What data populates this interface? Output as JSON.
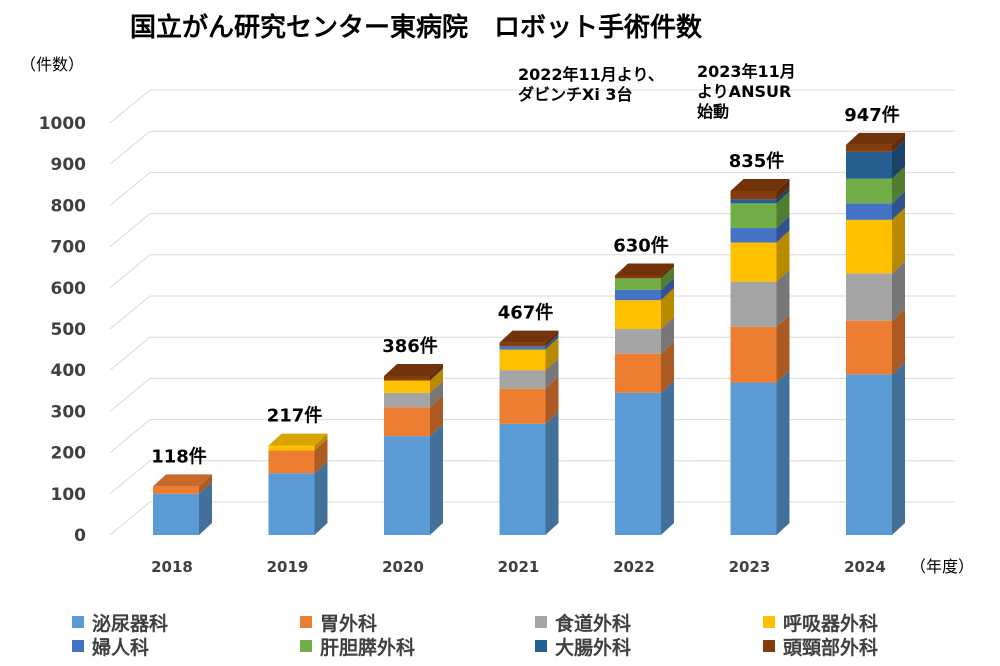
{
  "chart_data": {
    "type": "bar",
    "stacked": true,
    "three_d": true,
    "title": "国立がん研究センター東病院　ロボット手術件数",
    "ylabel": "（件数）",
    "xlabel": "（年度）",
    "ylim": [
      0,
      1000
    ],
    "yticks": [
      0,
      100,
      200,
      300,
      400,
      500,
      600,
      700,
      800,
      900,
      1000
    ],
    "grid": true,
    "legend_position": "bottom",
    "categories": [
      "2018",
      "2019",
      "2020",
      "2021",
      "2022",
      "2023",
      "2024"
    ],
    "totals": [
      118,
      217,
      386,
      467,
      630,
      835,
      947
    ],
    "total_labels": [
      "118件",
      "217件",
      "386件",
      "467件",
      "630件",
      "835件",
      "947件"
    ],
    "series": [
      {
        "name": "泌尿器科",
        "color": "#5B9BD5",
        "values": [
          100,
          150,
          240,
          270,
          345,
          370,
          390
        ]
      },
      {
        "name": "胃外科",
        "color": "#ED7D31",
        "values": [
          18,
          55,
          70,
          85,
          95,
          135,
          130
        ]
      },
      {
        "name": "食道外科",
        "color": "#A5A5A5",
        "values": [
          0,
          0,
          35,
          45,
          60,
          110,
          115
        ]
      },
      {
        "name": "呼吸器外科",
        "color": "#FFC000",
        "values": [
          0,
          12,
          30,
          50,
          70,
          95,
          130
        ]
      },
      {
        "name": "婦人科",
        "color": "#4472C4",
        "values": [
          0,
          0,
          0,
          8,
          25,
          35,
          40
        ]
      },
      {
        "name": "肝胆膵外科",
        "color": "#70AD47",
        "values": [
          0,
          0,
          0,
          0,
          28,
          60,
          60
        ]
      },
      {
        "name": "大腸外科",
        "color": "#255E91",
        "values": [
          0,
          0,
          0,
          0,
          0,
          10,
          65
        ]
      },
      {
        "name": "頭頸部外科",
        "color": "#843C0C",
        "values": [
          0,
          0,
          11,
          9,
          7,
          20,
          17
        ]
      }
    ],
    "annotations": [
      {
        "text": [
          "2022年11月より、",
          "ダビンチXi 3台"
        ],
        "category": "2022"
      },
      {
        "text": [
          "2023年11月",
          "よりANSUR",
          "始動"
        ],
        "category": "2023"
      }
    ]
  }
}
